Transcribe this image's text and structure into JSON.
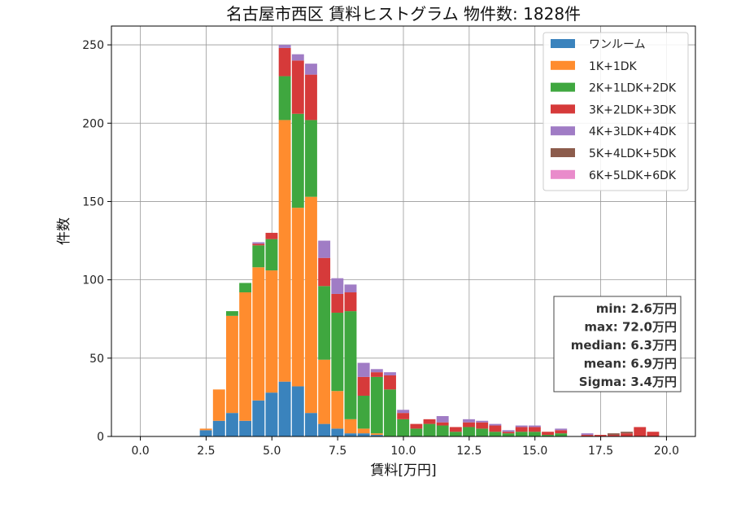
{
  "chart_data": {
    "type": "bar",
    "stacked": true,
    "title": "名古屋市西区 賃料ヒストグラム  物件数: 1828件",
    "xlabel": "賃料[万円]",
    "ylabel": "件数",
    "xlim": [
      -1.1,
      21.1
    ],
    "ylim": [
      0,
      262
    ],
    "xticks": [
      0,
      2.5,
      5,
      7.5,
      10,
      12.5,
      15,
      17.5,
      20
    ],
    "xtick_labels": [
      "0.0",
      "2.5",
      "5.0",
      "7.5",
      "10.0",
      "12.5",
      "15.0",
      "17.5",
      "20.0"
    ],
    "yticks": [
      0,
      50,
      100,
      150,
      200,
      250
    ],
    "ytick_labels": [
      "0",
      "50",
      "100",
      "150",
      "200",
      "250"
    ],
    "grid": true,
    "legend_position": "top-right",
    "bin_width": 0.5,
    "x": [
      2.5,
      3,
      3.5,
      4,
      4.5,
      5,
      5.5,
      6,
      6.5,
      7,
      7.5,
      8,
      8.5,
      9,
      9.5,
      10,
      10.5,
      11,
      11.5,
      12,
      12.5,
      13,
      13.5,
      14,
      14.5,
      15,
      15.5,
      16,
      16.5,
      17,
      17.5,
      18,
      18.5,
      19,
      19.5
    ],
    "series": [
      {
        "name": "ワンルーム",
        "color": "#3a83bd",
        "values": [
          4,
          10,
          15,
          10,
          23,
          28,
          35,
          32,
          15,
          8,
          5,
          2,
          2,
          1,
          0,
          0,
          0,
          0,
          0,
          0,
          0,
          0,
          0,
          0,
          0,
          0,
          0,
          0,
          0,
          0,
          0,
          0,
          0,
          0,
          0
        ]
      },
      {
        "name": "1K+1DK",
        "color": "#ff8c2e",
        "values": [
          1,
          20,
          62,
          82,
          85,
          78,
          167,
          114,
          138,
          41,
          24,
          9,
          3,
          1,
          0,
          0,
          0,
          0,
          0,
          0,
          0,
          0,
          0,
          0,
          0,
          0,
          0,
          0,
          0,
          0,
          0,
          0,
          0,
          0,
          0
        ]
      },
      {
        "name": "2K+1LDK+2DK",
        "color": "#3fa73f",
        "values": [
          0,
          0,
          3,
          6,
          14,
          20,
          28,
          60,
          49,
          47,
          50,
          69,
          21,
          36,
          30,
          11,
          5,
          8,
          7,
          3,
          6,
          5,
          3,
          2,
          3,
          3,
          1,
          2,
          0,
          0,
          0,
          0,
          0,
          0,
          0
        ]
      },
      {
        "name": "3K+2LDK+3DK",
        "color": "#d63a3a",
        "values": [
          0,
          0,
          0,
          0,
          1,
          4,
          18,
          34,
          29,
          18,
          12,
          12,
          12,
          3,
          9,
          4,
          3,
          3,
          2,
          3,
          3,
          4,
          4,
          1,
          3,
          3,
          2,
          2,
          0,
          1,
          1,
          1,
          2,
          6,
          3
        ]
      },
      {
        "name": "4K+3LDK+4DK",
        "color": "#a07cc5",
        "values": [
          0,
          0,
          0,
          0,
          1,
          0,
          2,
          4,
          7,
          11,
          10,
          5,
          9,
          2,
          2,
          2,
          0,
          0,
          4,
          0,
          2,
          1,
          1,
          1,
          1,
          1,
          0,
          1,
          0,
          1,
          0,
          0,
          0,
          0,
          0
        ]
      },
      {
        "name": "5K+4LDK+5DK",
        "color": "#8c5c4c",
        "values": [
          0,
          0,
          0,
          0,
          0,
          0,
          0,
          0,
          0,
          0,
          0,
          0,
          0,
          0,
          0,
          0,
          0,
          0,
          0,
          0,
          0,
          0,
          0,
          0,
          0,
          0,
          0,
          0,
          0,
          0,
          0,
          1,
          1,
          0,
          0
        ]
      },
      {
        "name": "6K+5LDK+6DK",
        "color": "#e98bcb",
        "values": [
          0,
          0,
          0,
          0,
          0,
          0,
          0,
          0,
          0,
          0,
          0,
          0,
          0,
          0,
          0,
          0,
          0,
          0,
          0,
          0,
          0,
          0,
          0,
          0,
          0,
          0,
          0,
          0,
          0,
          0,
          0,
          0,
          0,
          0,
          0
        ]
      }
    ],
    "stats_box": [
      "min: 2.6万円",
      "max: 72.0万円",
      "median: 6.3万円",
      "mean: 6.9万円",
      "Sigma: 3.4万円"
    ]
  }
}
